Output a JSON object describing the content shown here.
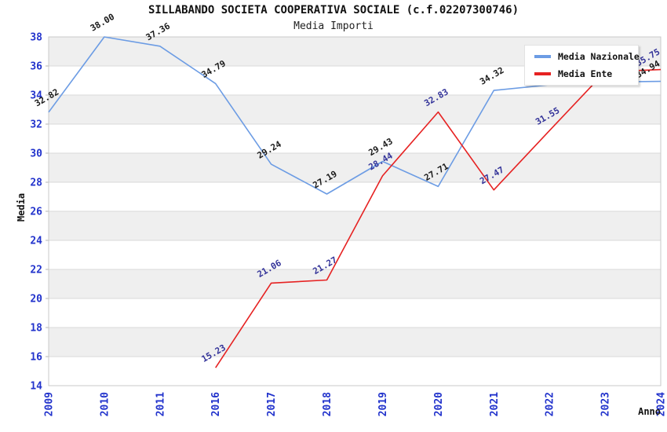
{
  "chart_data": {
    "type": "line",
    "title": "SILLABANDO SOCIETA COOPERATIVA SOCIALE (c.f.02207300746)",
    "subtitle": "Media Importi",
    "xlabel": "Anno",
    "ylabel": "Media",
    "ylim": [
      14,
      38
    ],
    "ytick_step": 2,
    "yticks": [
      14,
      16,
      18,
      20,
      22,
      24,
      26,
      28,
      30,
      32,
      34,
      36,
      38
    ],
    "categories": [
      "2009",
      "2010",
      "2011",
      "2016",
      "2017",
      "2018",
      "2019",
      "2020",
      "2021",
      "2022",
      "2023",
      "2024"
    ],
    "grid": "horizontal-bands",
    "colors": {
      "tick_label": "#2233cc",
      "axis_title": "#111111",
      "band": "#efefef",
      "gridline": "#d9d9d9",
      "plot_border": "#c8c8c8"
    },
    "legend": {
      "position": "top-right",
      "entries": [
        {
          "label": "Media Nazionale",
          "color": "#6c9ce4"
        },
        {
          "label": "Media Ente",
          "color": "#e62222"
        }
      ]
    },
    "series": [
      {
        "name": "Media Nazionale",
        "color": "#6c9ce4",
        "label_color": "#1a1a1a",
        "points": [
          {
            "x": "2009",
            "y": 32.82,
            "label": "32.82"
          },
          {
            "x": "2010",
            "y": 38.0,
            "label": "38.00"
          },
          {
            "x": "2011",
            "y": 37.36,
            "label": "37.36"
          },
          {
            "x": "2016",
            "y": 34.79,
            "label": "34.79"
          },
          {
            "x": "2017",
            "y": 29.24,
            "label": "29.24"
          },
          {
            "x": "2018",
            "y": 27.19,
            "label": "27.19"
          },
          {
            "x": "2019",
            "y": 29.43,
            "label": "29.43"
          },
          {
            "x": "2020",
            "y": 27.71,
            "label": "27.71"
          },
          {
            "x": "2021",
            "y": 34.32,
            "label": "34.32"
          },
          {
            "x": "2022",
            "y": 34.7,
            "label": ""
          },
          {
            "x": "2023",
            "y": 34.9,
            "label": ""
          },
          {
            "x": "2024",
            "y": 34.94,
            "label": "34.94"
          }
        ]
      },
      {
        "name": "Media Ente",
        "color": "#e62222",
        "label_color": "#333399",
        "points": [
          {
            "x": "2016",
            "y": 15.23,
            "label": "15.23"
          },
          {
            "x": "2017",
            "y": 21.06,
            "label": "21.06"
          },
          {
            "x": "2018",
            "y": 21.27,
            "label": "21.27"
          },
          {
            "x": "2019",
            "y": 28.44,
            "label": "28.44"
          },
          {
            "x": "2020",
            "y": 32.83,
            "label": "32.83"
          },
          {
            "x": "2021",
            "y": 27.47,
            "label": "27.47"
          },
          {
            "x": "2022",
            "y": 31.55,
            "label": "31.55"
          },
          {
            "x": "2023",
            "y": 35.6,
            "label": ""
          },
          {
            "x": "2024",
            "y": 35.75,
            "label": "35.75"
          }
        ]
      }
    ]
  }
}
